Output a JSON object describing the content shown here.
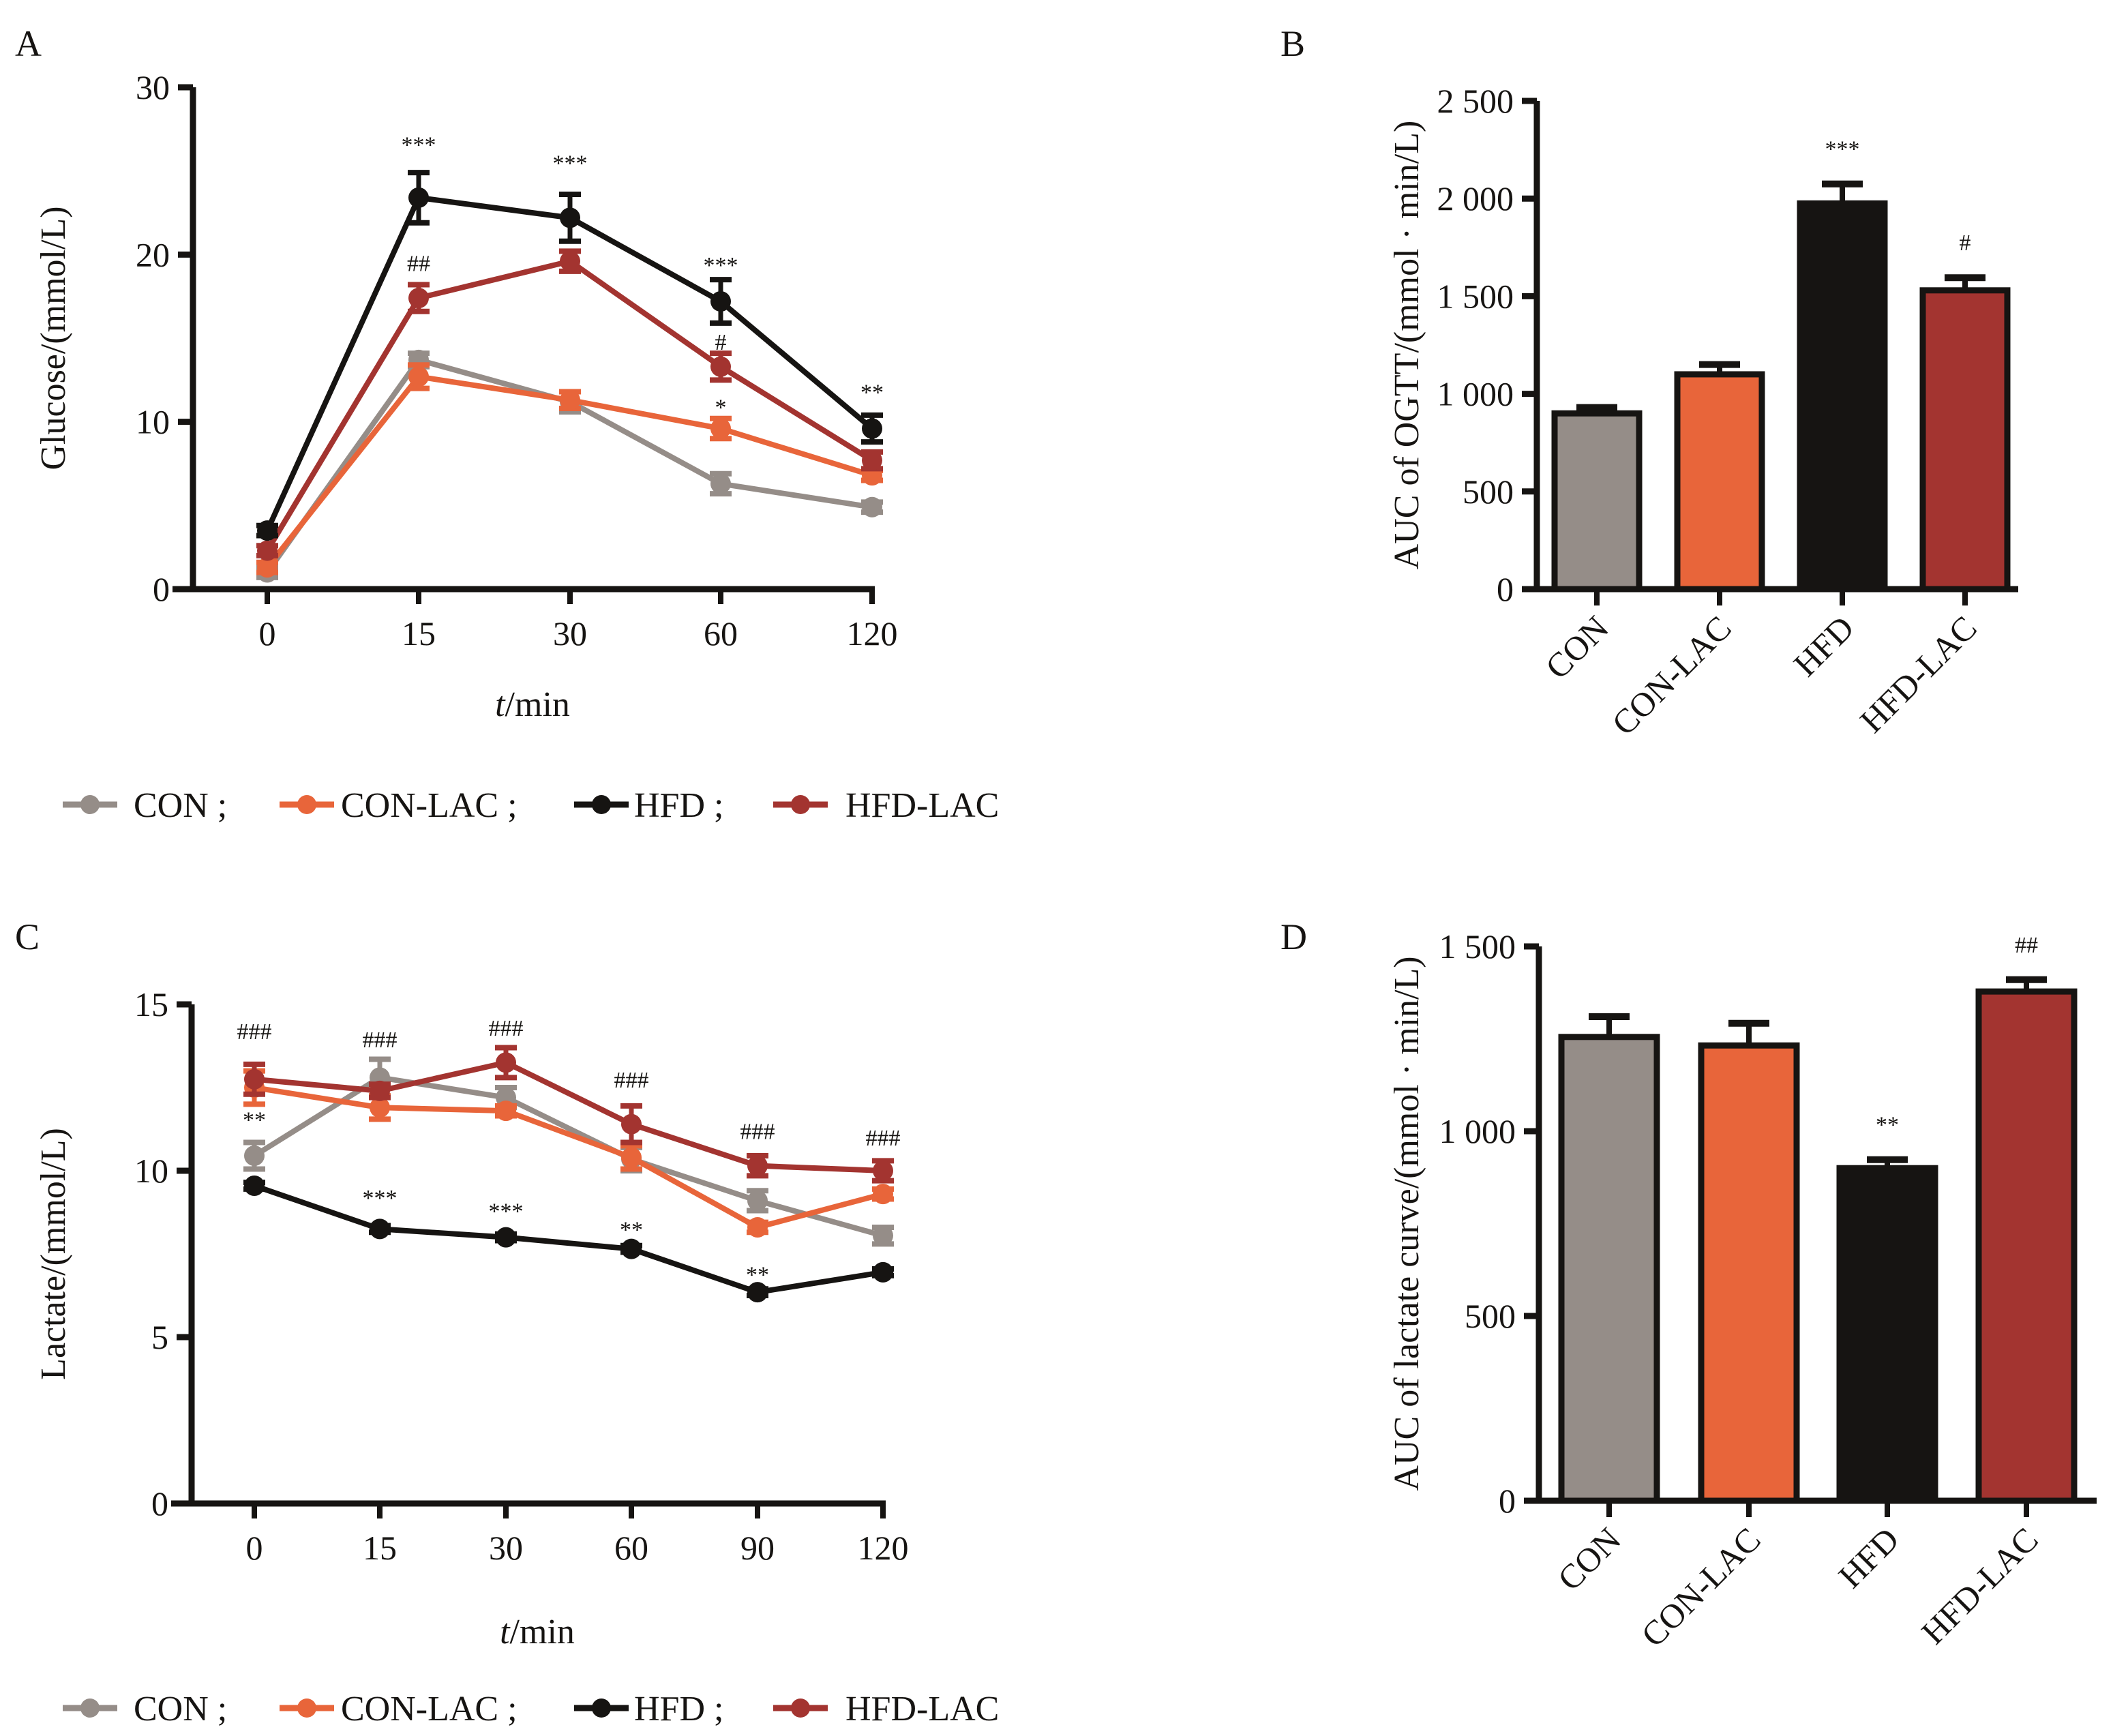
{
  "colors": {
    "CON": "#958d88",
    "CON-LAC": "#e8653a",
    "HFD": "#161412",
    "HFD-LAC": "#a33430",
    "axis": "#161412"
  },
  "legend": {
    "items": [
      {
        "label": "CON ;",
        "group": "CON"
      },
      {
        "label": "CON-LAC ;",
        "group": "CON-LAC"
      },
      {
        "label": "HFD ;",
        "group": "HFD"
      },
      {
        "label": "HFD-LAC",
        "group": "HFD-LAC"
      }
    ]
  },
  "chart_data": [
    {
      "panel": "A",
      "type": "line",
      "title": "",
      "xlabel_italic": "t",
      "xlabel_rest": "/min",
      "ylabel": "Glucose/(mmol/L)",
      "x": [
        "0",
        "15",
        "30",
        "60",
        "120"
      ],
      "ylim": [
        0,
        30
      ],
      "yticks": [
        0,
        10,
        20,
        30
      ],
      "grid": false,
      "legend_position": "bottom",
      "series": [
        {
          "name": "CON",
          "values": [
            1.0,
            13.7,
            11.2,
            6.3,
            4.9
          ],
          "errors": [
            0.3,
            0.4,
            0.6,
            0.6,
            0.3
          ]
        },
        {
          "name": "CON-LAC",
          "values": [
            1.3,
            12.7,
            11.3,
            9.6,
            6.8
          ],
          "errors": [
            0.3,
            0.7,
            0.5,
            0.6,
            0.3
          ]
        },
        {
          "name": "HFD",
          "values": [
            3.5,
            23.4,
            22.2,
            17.2,
            9.6
          ],
          "errors": [
            0.3,
            1.5,
            1.4,
            1.3,
            0.8
          ]
        },
        {
          "name": "HFD-LAC",
          "values": [
            2.3,
            17.4,
            19.6,
            13.3,
            7.7
          ],
          "errors": [
            0.3,
            0.8,
            0.6,
            0.8,
            0.5
          ]
        }
      ],
      "annotations": [
        {
          "text": "***",
          "x_index": 1,
          "y": 26.6
        },
        {
          "text": "##",
          "x_index": 1,
          "y": 19.5
        },
        {
          "text": "***",
          "x_index": 2,
          "y": 25.5
        },
        {
          "text": "***",
          "x_index": 3,
          "y": 19.4
        },
        {
          "text": "#",
          "x_index": 3,
          "y": 14.8
        },
        {
          "text": "*",
          "x_index": 3,
          "y": 10.9
        },
        {
          "text": "**",
          "x_index": 4,
          "y": 11.8
        }
      ]
    },
    {
      "panel": "B",
      "type": "bar",
      "title": "",
      "xlabel": "",
      "ylabel": "AUC of OGTT/(mmol · min/L)",
      "categories": [
        "CON",
        "CON-LAC",
        "HFD",
        "HFD-LAC"
      ],
      "values": [
        900,
        1100,
        1975,
        1530
      ],
      "errors": [
        30,
        50,
        100,
        65
      ],
      "ylim": [
        0,
        2500
      ],
      "yticks": [
        0,
        500,
        1000,
        1500,
        2000,
        2500
      ],
      "ytick_labels": [
        "0",
        "500",
        "1 000",
        "1 500",
        "2 000",
        "2 500"
      ],
      "grid": false,
      "annotations": [
        {
          "text": "***",
          "category_index": 2
        },
        {
          "text": "#",
          "category_index": 3
        }
      ]
    },
    {
      "panel": "C",
      "type": "line",
      "title": "",
      "xlabel_italic": "t",
      "xlabel_rest": "/min",
      "ylabel": "Lactate/(mmol/L)",
      "x": [
        "0",
        "15",
        "30",
        "60",
        "90",
        "120"
      ],
      "ylim": [
        0,
        15
      ],
      "yticks": [
        0,
        5,
        10,
        15
      ],
      "grid": false,
      "legend_position": "bottom",
      "series": [
        {
          "name": "CON",
          "values": [
            10.45,
            12.8,
            12.2,
            10.35,
            9.1,
            8.05
          ],
          "errors": [
            0.4,
            0.55,
            0.3,
            0.35,
            0.3,
            0.25
          ]
        },
        {
          "name": "CON-LAC",
          "values": [
            12.5,
            11.9,
            11.8,
            10.4,
            8.3,
            9.3
          ],
          "errors": [
            0.5,
            0.35,
            0.15,
            0.35,
            0.15,
            0.15
          ]
        },
        {
          "name": "HFD",
          "values": [
            9.55,
            8.25,
            8.0,
            7.65,
            6.35,
            6.95
          ],
          "errors": [
            0.1,
            0.1,
            0.1,
            0.1,
            0.1,
            0.1
          ]
        },
        {
          "name": "HFD-LAC",
          "values": [
            12.75,
            12.4,
            13.25,
            11.4,
            10.15,
            10.0
          ],
          "errors": [
            0.45,
            0.2,
            0.45,
            0.55,
            0.3,
            0.3
          ]
        }
      ],
      "annotations": [
        {
          "text": "###",
          "x_index": 0,
          "y": 14.2
        },
        {
          "text": "**",
          "x_index": 0,
          "y": 11.55
        },
        {
          "text": "###",
          "x_index": 1,
          "y": 13.95
        },
        {
          "text": "***",
          "x_index": 1,
          "y": 9.2
        },
        {
          "text": "###",
          "x_index": 2,
          "y": 14.3
        },
        {
          "text": "***",
          "x_index": 2,
          "y": 8.8
        },
        {
          "text": "###",
          "x_index": 3,
          "y": 12.75
        },
        {
          "text": "**",
          "x_index": 3,
          "y": 8.25
        },
        {
          "text": "###",
          "x_index": 4,
          "y": 11.2
        },
        {
          "text": "**",
          "x_index": 4,
          "y": 6.9
        },
        {
          "text": "###",
          "x_index": 5,
          "y": 11.0
        }
      ]
    },
    {
      "panel": "D",
      "type": "bar",
      "title": "",
      "xlabel": "",
      "ylabel": "AUC of lactate curve/(mmol · min/L)",
      "categories": [
        "CON",
        "CON-LAC",
        "HFD",
        "HFD-LAC"
      ],
      "values": [
        1255,
        1232,
        900,
        1378
      ],
      "errors": [
        55,
        60,
        23,
        32
      ],
      "ylim": [
        0,
        1500
      ],
      "yticks": [
        0,
        500,
        1000,
        1500
      ],
      "ytick_labels": [
        "0",
        "500",
        "1 000",
        "1 500"
      ],
      "grid": false,
      "annotations": [
        {
          "text": "**",
          "category_index": 2
        },
        {
          "text": "##",
          "category_index": 3
        }
      ]
    }
  ]
}
